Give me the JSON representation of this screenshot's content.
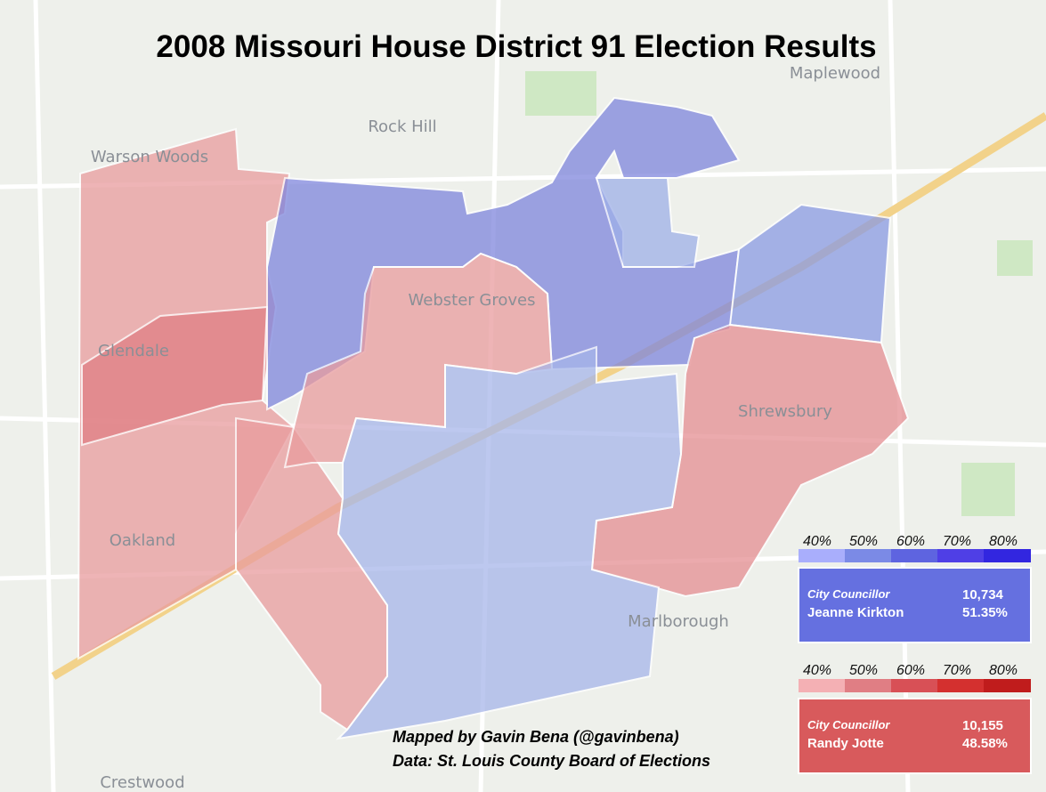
{
  "title": "2008 Missouri House District 91 Election Results",
  "places": [
    "Warson Woods",
    "Rock Hill",
    "Maplewood",
    "Glendale",
    "Webster Groves",
    "Shrewsbury",
    "Oakland",
    "Marlborough",
    "Crestwood"
  ],
  "legend": {
    "blue": [
      "40%",
      "50%",
      "60%",
      "70%",
      "80%"
    ],
    "red": [
      "40%",
      "50%",
      "60%",
      "70%",
      "80%"
    ]
  },
  "candidates": [
    {
      "office": "City Councillor",
      "name": "Jeanne Kirkton",
      "votes": "10,734",
      "share": "51.35%"
    },
    {
      "office": "City Councillor",
      "name": "Randy Jotte",
      "votes": "10,155",
      "share": "48.58%"
    }
  ],
  "credits": [
    "Mapped by Gavin Bena (@gavinbena)",
    "Data: St. Louis County Board of Elections"
  ]
}
